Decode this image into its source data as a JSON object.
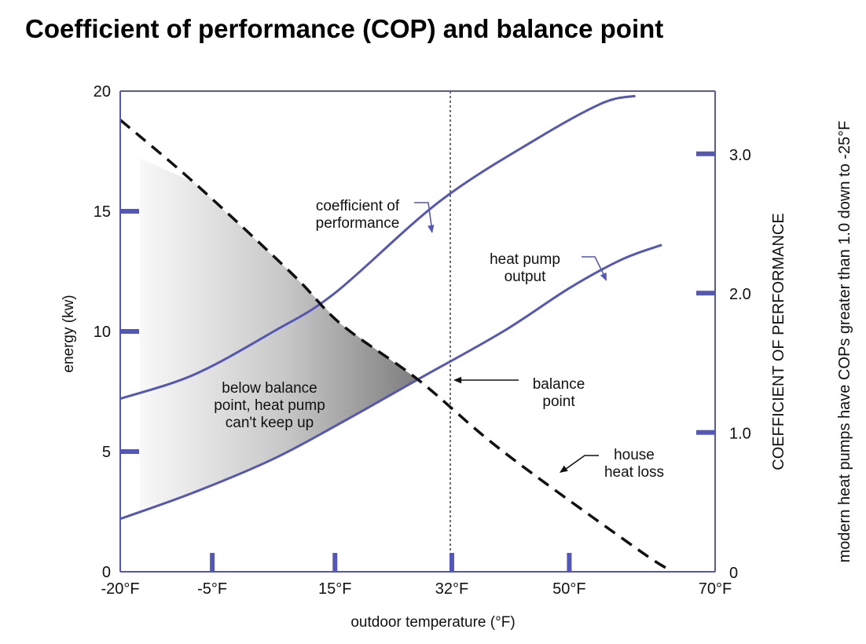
{
  "colors": {
    "axis": "#5457b3",
    "curve": "#5457b3",
    "loss": "#111111",
    "shade_dark": "#7a7a7a"
  },
  "chart_data": {
    "type": "line",
    "title": "Coefficient of performance (COP) and balance point",
    "xlabel": "outdoor temperature (°F)",
    "ylabel": "energy (kw)",
    "y2label": "COEFFICIENT OF PERFORMANCE",
    "side_note": "modern heat pumps have COPs greater than 1.0 down to -25°F",
    "x_tick_labels": [
      "-20°F",
      "-5°F",
      "15°F",
      "32°F",
      "50°F",
      "70°F"
    ],
    "y_ticks": [
      0,
      5,
      10,
      15,
      20
    ],
    "y_tick_labels": [
      "0",
      "5",
      "10",
      "15",
      "20"
    ],
    "y2_ticks": [
      0,
      1.0,
      2.0,
      3.0
    ],
    "y2_tick_labels": [
      "0",
      "1.0",
      "2.0",
      "3.0"
    ],
    "ylim": [
      0,
      20
    ],
    "y2lim": [
      0,
      3.45
    ],
    "grid": false,
    "series": [
      {
        "name": "house heat loss",
        "style": "dashed",
        "axis": "left",
        "points": [
          [
            -20,
            18.8
          ],
          [
            -8,
            16.2
          ],
          [
            8,
            12.4
          ],
          [
            16,
            10.3
          ],
          [
            28.5,
            8.0
          ],
          [
            40,
            5.0
          ],
          [
            60,
            1.0
          ],
          [
            65,
            0.1
          ]
        ]
      },
      {
        "name": "heat pump output",
        "style": "solid",
        "axis": "left",
        "points": [
          [
            -20,
            2.2
          ],
          [
            -8,
            3.3
          ],
          [
            5,
            4.7
          ],
          [
            16,
            6.2
          ],
          [
            28.5,
            8.0
          ],
          [
            40,
            10.0
          ],
          [
            50,
            11.8
          ],
          [
            58,
            13.0
          ],
          [
            64,
            13.6
          ]
        ]
      },
      {
        "name": "coefficient of performance",
        "style": "solid",
        "axis": "left",
        "points": [
          [
            -20,
            7.2
          ],
          [
            -8,
            8.2
          ],
          [
            5,
            10.0
          ],
          [
            15,
            11.6
          ],
          [
            32,
            15.4
          ],
          [
            45,
            18.0
          ],
          [
            55,
            19.5
          ],
          [
            60,
            19.8
          ]
        ]
      }
    ],
    "annotations": {
      "cop": [
        "coefficient of",
        "performance"
      ],
      "output": [
        "heat pump",
        "output"
      ],
      "balance": [
        "balance",
        "point"
      ],
      "loss": [
        "house",
        "heat loss"
      ],
      "below": [
        "below balance",
        "point, heat pump",
        "can't keep up"
      ]
    }
  }
}
